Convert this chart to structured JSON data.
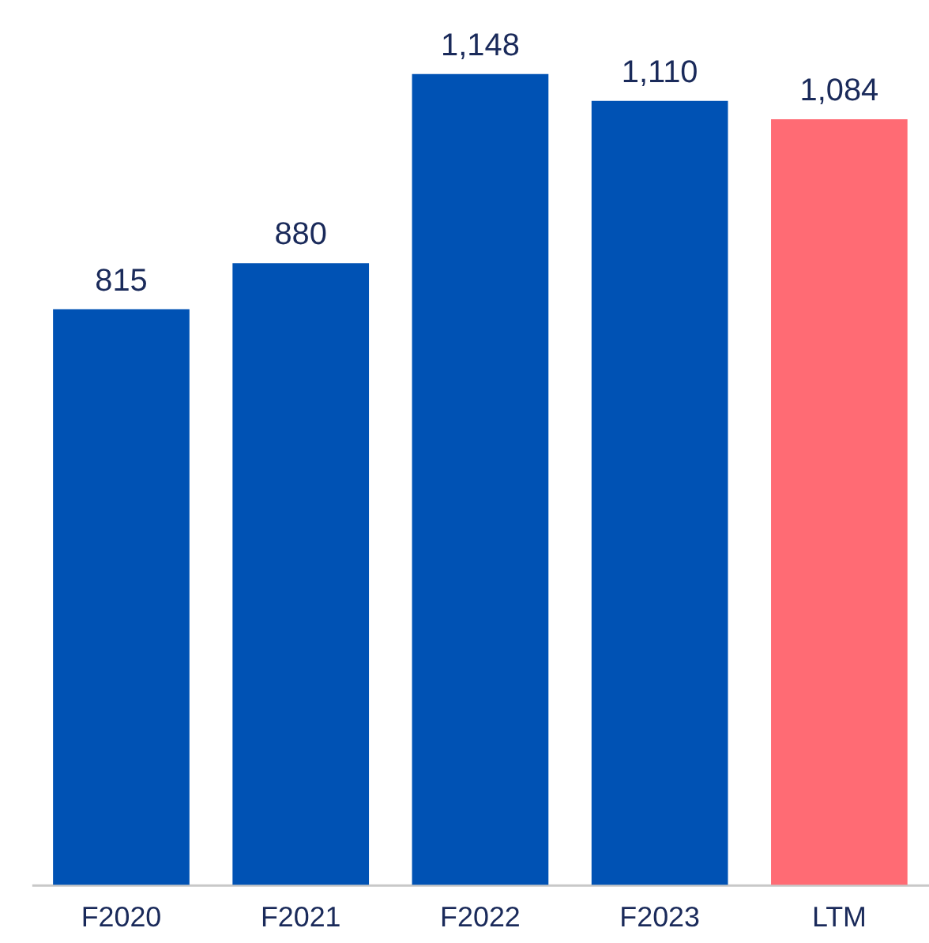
{
  "chart_data": {
    "type": "bar",
    "categories": [
      "F2020",
      "F2021",
      "F2022",
      "F2023",
      "LTM"
    ],
    "values": [
      815,
      880,
      1148,
      1110,
      1084
    ],
    "colors": [
      "#0052b4",
      "#0052b4",
      "#0052b4",
      "#0052b4",
      "#ff6b74"
    ],
    "value_labels": [
      "815",
      "880",
      "1,148",
      "1,110",
      "1,084"
    ],
    "grid": false
  }
}
